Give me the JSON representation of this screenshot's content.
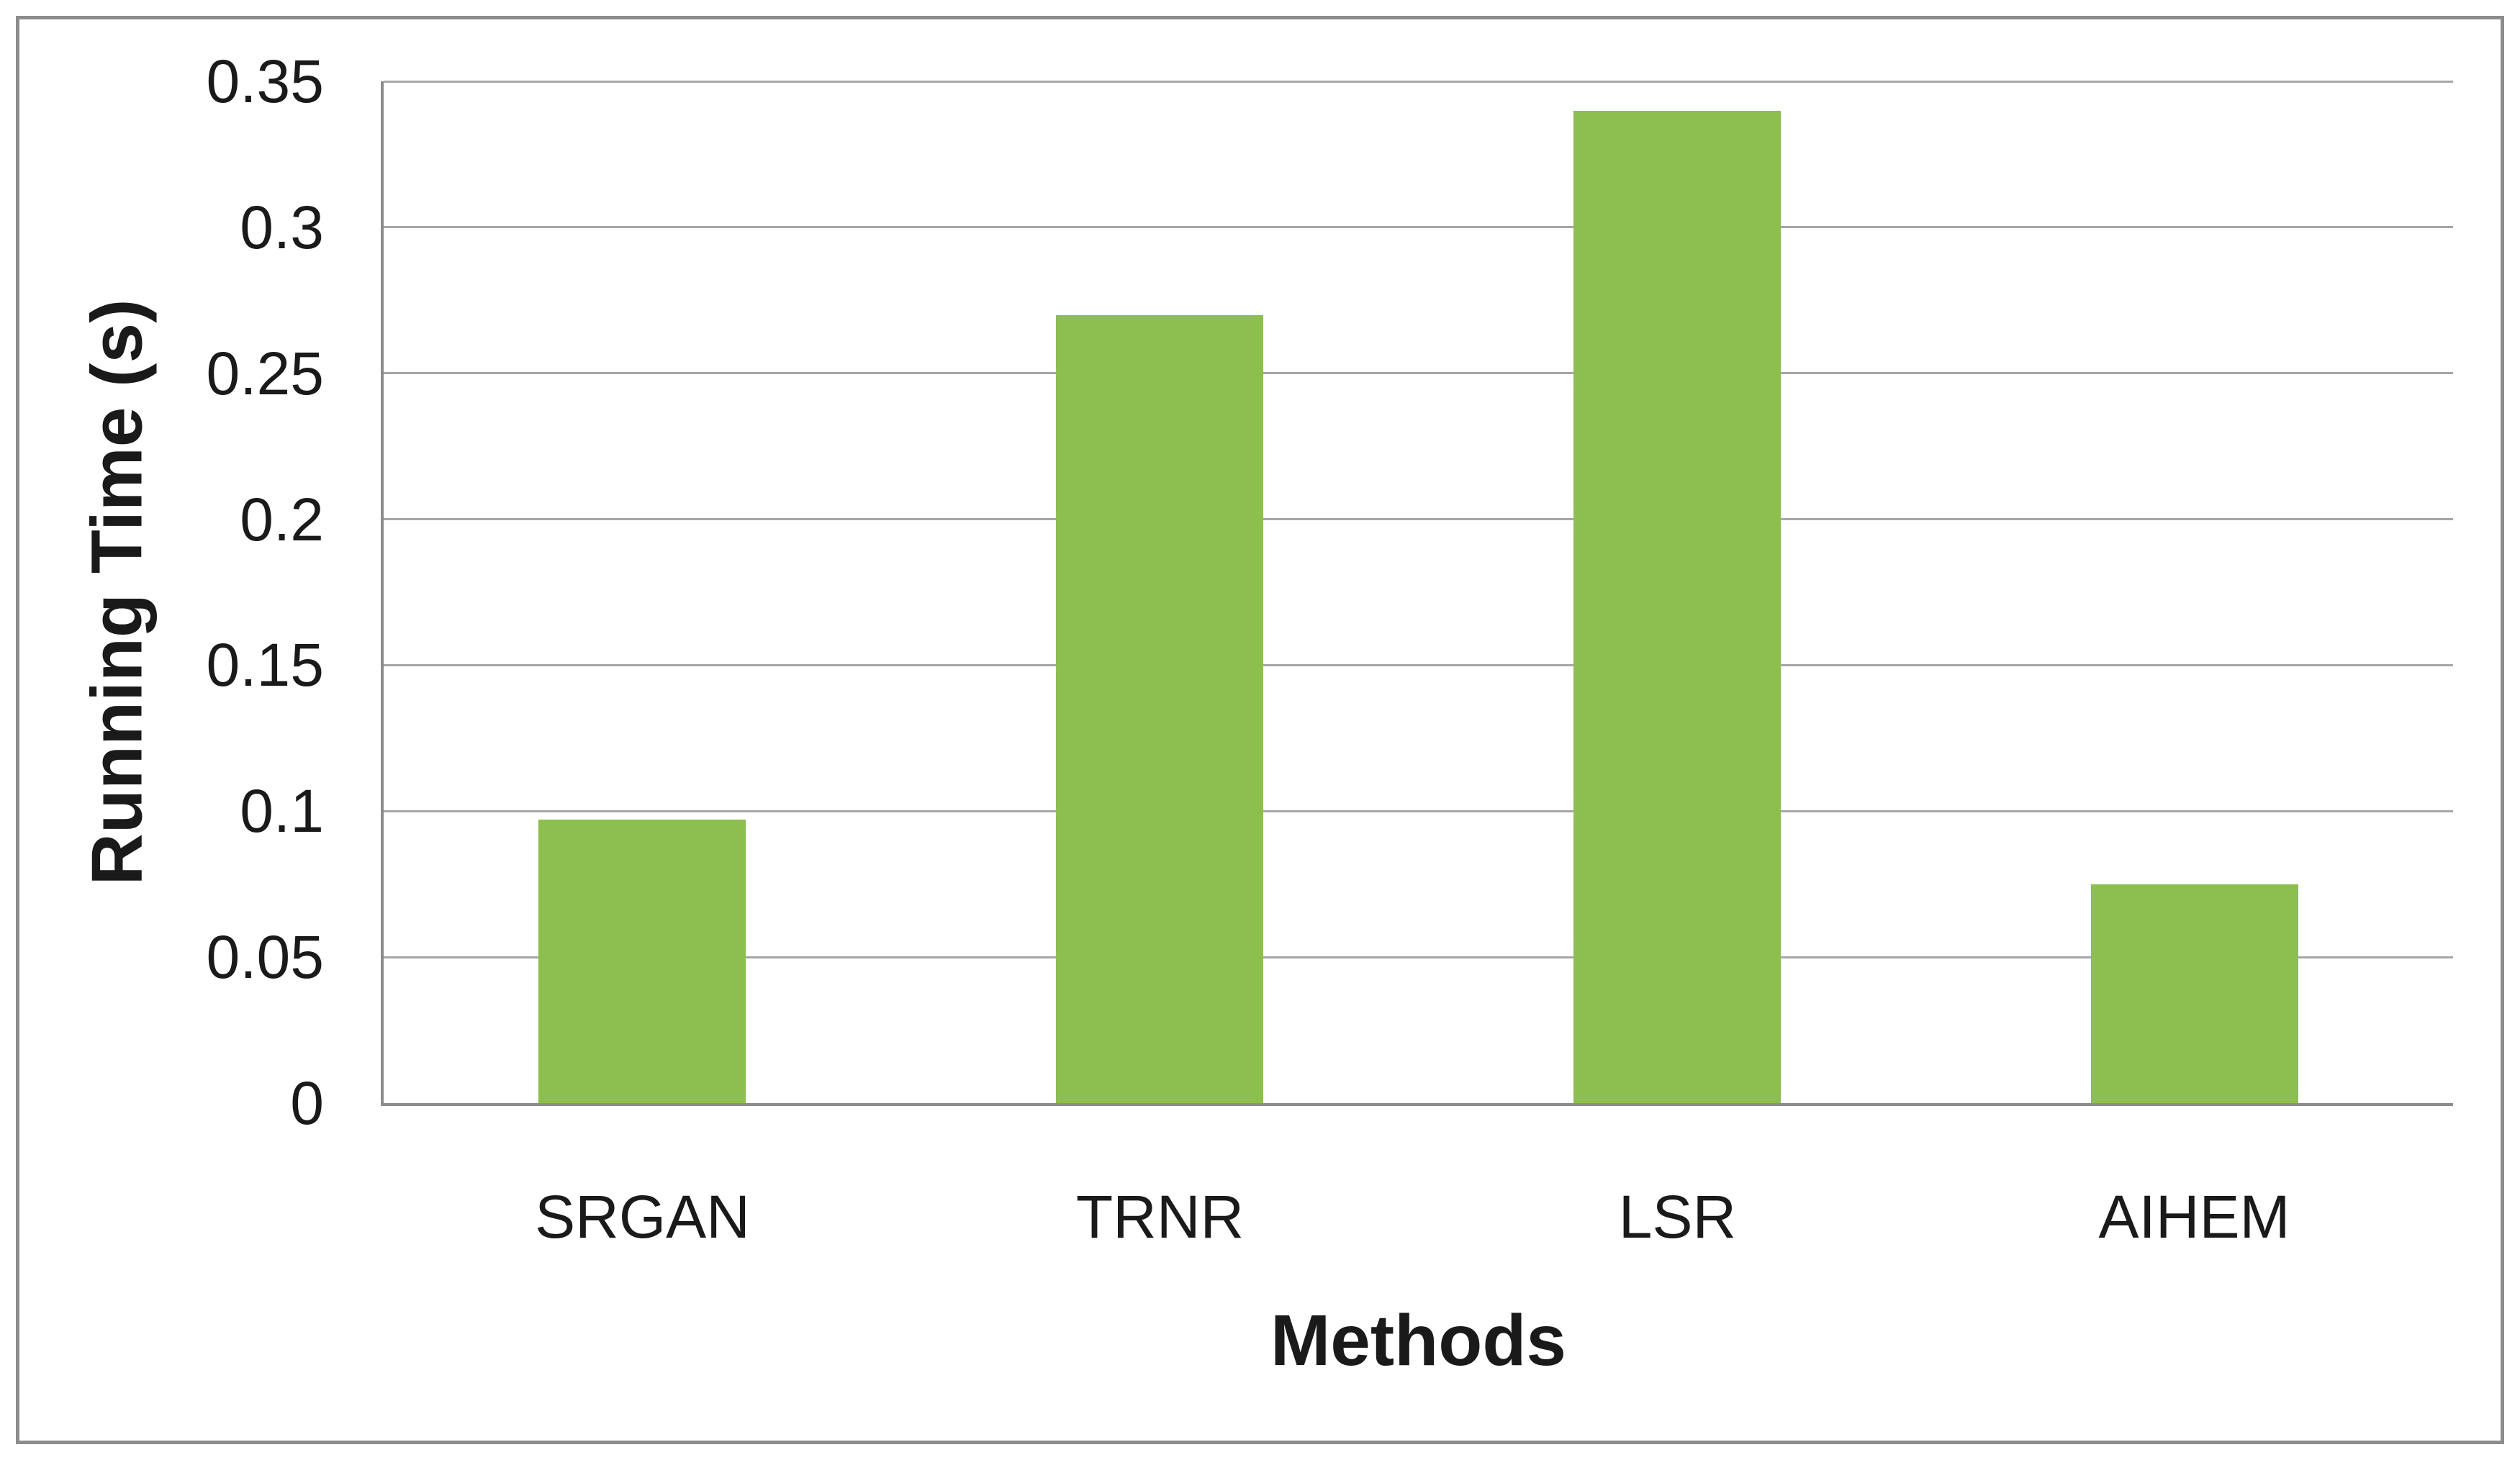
{
  "figure": {
    "background": "#FFFFFF",
    "frame_color": "#8C8C8C"
  },
  "chart_data": {
    "type": "bar",
    "title": "",
    "categories": [
      "SRGAN",
      "TRNR",
      "LSR",
      "AIHEM"
    ],
    "values": [
      0.097,
      0.27,
      0.34,
      0.075
    ],
    "xlabel": "Methods",
    "ylabel": "Running Time (s)",
    "ylim": [
      0,
      0.35
    ],
    "ytick_interval": 0.05,
    "ytick_labels": [
      "0",
      "0.05",
      "0.1",
      "0.15",
      "0.2",
      "0.25",
      "0.3",
      "0.35"
    ],
    "grid": "horizontal",
    "legend_position": "none",
    "colors": {
      "bar": "#8CBE50",
      "gridline": "#A6A6A6",
      "axis": "#8C8C8C",
      "text": "#1A1A1A"
    }
  }
}
